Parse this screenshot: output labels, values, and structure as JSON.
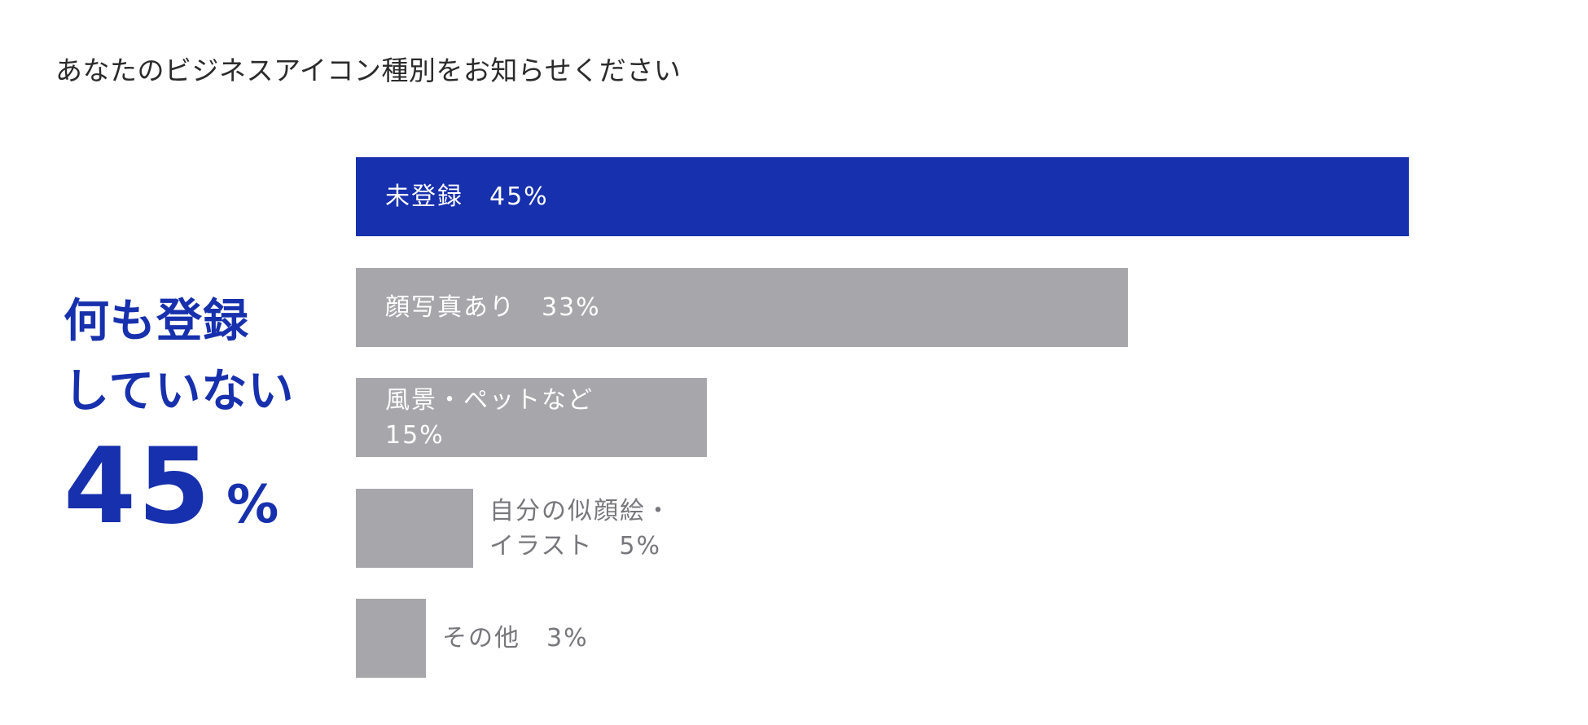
{
  "title": "あなたのビジネスアイコン種別をお知らせください",
  "callout": {
    "line1": "何も登録",
    "line2": "していない",
    "number": "45",
    "unit": "%"
  },
  "colors": {
    "highlight": "#1730ad",
    "bar": "#a6a6ab",
    "label_inside": "#ffffff",
    "label_outside": "#77777c"
  },
  "chart_data": {
    "type": "bar",
    "orientation": "horizontal",
    "title": "あなたのビジネスアイコン種別をお知らせください",
    "categories": [
      "未登録",
      "顔写真あり",
      "風景・ペットなど",
      "自分の似顔絵・イラスト",
      "その他"
    ],
    "values": [
      45,
      33,
      15,
      5,
      3
    ],
    "unit": "%",
    "labels": [
      "未登録　45%",
      "顔写真あり　33%",
      "風景・ペットなど\n15%",
      "自分の似顔絵・\nイラスト　5%",
      "その他　3%"
    ],
    "highlight_index": 0,
    "axes_visible": false,
    "grid": false
  }
}
